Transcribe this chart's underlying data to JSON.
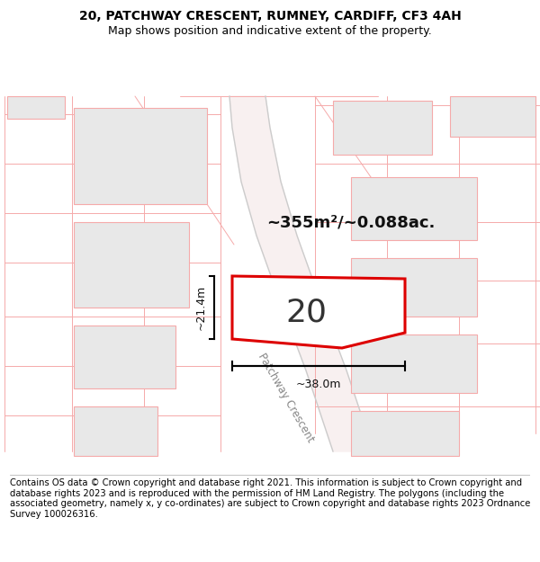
{
  "title_line1": "20, PATCHWAY CRESCENT, RUMNEY, CARDIFF, CF3 4AH",
  "title_line2": "Map shows position and indicative extent of the property.",
  "footer_text": "Contains OS data © Crown copyright and database right 2021. This information is subject to Crown copyright and database rights 2023 and is reproduced with the permission of HM Land Registry. The polygons (including the associated geometry, namely x, y co-ordinates) are subject to Crown copyright and database rights 2023 Ordnance Survey 100026316.",
  "page_bg": "#ffffff",
  "map_bg": "#ffffff",
  "plot_number": "20",
  "area_label": "~355m²/~0.088ac.",
  "width_label": "~38.0m",
  "height_label": "~21.4m",
  "road_label": "Patchway Crescent",
  "title_fontsize": 10,
  "subtitle_fontsize": 9,
  "footer_fontsize": 7.2,
  "building_fill": "#e8e8e8",
  "building_edge": "#f5aaaa",
  "parcel_line": "#f5aaaa",
  "plot_edge_color": "#dd0000",
  "annotation_color": "#000000"
}
